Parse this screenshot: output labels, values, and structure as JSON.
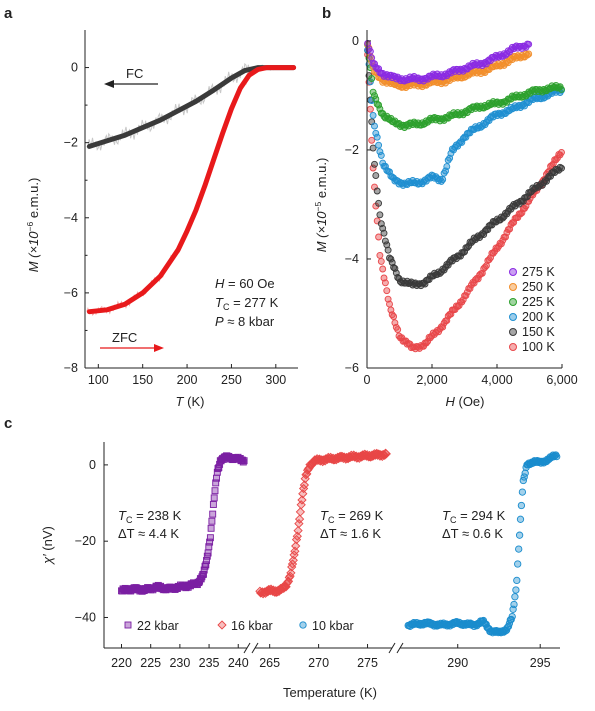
{
  "panels": {
    "a": {
      "letter": "a"
    },
    "b": {
      "letter": "b"
    },
    "c": {
      "letter": "c"
    }
  },
  "colors": {
    "fc": "#3a3a3a",
    "zfc": "#e8191b",
    "fc_noise": "#c8c8c8",
    "zfc_noise": "#f4a7a7",
    "t275": "#8a2be2",
    "t250": "#f28e2b",
    "t225": "#2ca02c",
    "t200": "#1f8fd1",
    "t150": "#3a3a3a",
    "t100": "#e8474a",
    "p22": "#7b1fa2",
    "p16": "#e84747",
    "p10": "#1a8ccd"
  },
  "chart_data": [
    {
      "id": "a",
      "type": "line",
      "ylabel_main": "M (×10",
      "ylabel_exp": "−6",
      "ylabel_unit": " e.m.u.)",
      "xlabel_main": "T",
      "xlabel_unit": " (K)",
      "xlim": [
        85,
        325
      ],
      "ylim": [
        -8,
        1
      ],
      "xticks": [
        "100",
        "150",
        "200",
        "250",
        "300"
      ],
      "yticks": [
        "0",
        "−2",
        "−4",
        "−6",
        "−8"
      ],
      "xtick_values": [
        100,
        150,
        200,
        250,
        300
      ],
      "ytick_values": [
        0,
        -2,
        -4,
        -6,
        -8
      ],
      "series": [
        {
          "name": "FC",
          "x": [
            90,
            110,
            130,
            150,
            170,
            190,
            210,
            230,
            250,
            265,
            280,
            300,
            320
          ],
          "y": [
            -2.1,
            -1.95,
            -1.8,
            -1.6,
            -1.4,
            -1.15,
            -0.9,
            -0.6,
            -0.28,
            -0.08,
            0,
            0,
            0
          ]
        },
        {
          "name": "ZFC",
          "x": [
            90,
            110,
            130,
            150,
            170,
            190,
            200,
            210,
            220,
            230,
            240,
            250,
            260,
            270,
            280,
            290,
            300,
            320
          ],
          "y": [
            -6.5,
            -6.45,
            -6.3,
            -6.0,
            -5.55,
            -4.85,
            -4.35,
            -3.8,
            -3.15,
            -2.45,
            -1.75,
            -1.1,
            -0.55,
            -0.2,
            -0.05,
            0,
            0,
            0
          ]
        }
      ],
      "annotations": {
        "h_label": "H = 60 Oe",
        "tc_main": "T",
        "tc_sub": "C",
        "tc_value": " = 277 K",
        "p_label": "P ≈ 8 kbar",
        "fc_label": "FC",
        "zfc_label": "ZFC"
      }
    },
    {
      "id": "b",
      "type": "scatter",
      "ylabel_main": "M (×10",
      "ylabel_exp": "−5",
      "ylabel_unit": " e.m.u.)",
      "xlabel_main": "H",
      "xlabel_unit": " (Oe)",
      "xlim": [
        0,
        6000
      ],
      "ylim": [
        -6,
        0.2
      ],
      "xticks": [
        "0",
        "2,000",
        "4,000",
        "6,000"
      ],
      "yticks": [
        "0",
        "−2",
        "−4",
        "−6"
      ],
      "xtick_values": [
        0,
        2000,
        4000,
        6000
      ],
      "ytick_values": [
        0,
        -2,
        -4,
        -6
      ],
      "series": [
        {
          "name": "275 K",
          "x": [
            0,
            200,
            500,
            800,
            1200,
            1600,
            2000,
            2500,
            3000,
            3500,
            4000,
            4500,
            5000
          ],
          "y": [
            0,
            -0.45,
            -0.6,
            -0.68,
            -0.7,
            -0.7,
            -0.66,
            -0.6,
            -0.5,
            -0.42,
            -0.3,
            -0.15,
            -0.05
          ]
        },
        {
          "name": "250 K",
          "x": [
            0,
            200,
            500,
            800,
            1200,
            1600,
            2000,
            2500,
            3000,
            3500,
            4000,
            4500,
            5000
          ],
          "y": [
            0,
            -0.55,
            -0.72,
            -0.8,
            -0.82,
            -0.8,
            -0.77,
            -0.72,
            -0.63,
            -0.56,
            -0.46,
            -0.33,
            -0.22
          ]
        },
        {
          "name": "225 K",
          "x": [
            0,
            200,
            500,
            800,
            1200,
            1600,
            2000,
            2500,
            3000,
            3500,
            4000,
            4500,
            5000,
            5500,
            6000
          ],
          "y": [
            0,
            -1.0,
            -1.35,
            -1.5,
            -1.55,
            -1.52,
            -1.45,
            -1.4,
            -1.3,
            -1.2,
            -1.15,
            -1.05,
            -0.95,
            -0.88,
            -0.85
          ]
        },
        {
          "name": "200 K",
          "x": [
            0,
            200,
            500,
            800,
            1200,
            1600,
            2000,
            2300,
            2600,
            3000,
            3500,
            4000,
            4500,
            5000,
            5500,
            6000
          ],
          "y": [
            0,
            -1.5,
            -2.25,
            -2.55,
            -2.62,
            -2.6,
            -2.5,
            -2.55,
            -2.05,
            -1.75,
            -1.55,
            -1.35,
            -1.25,
            -1.1,
            -1.0,
            -0.9
          ]
        },
        {
          "name": "150 K",
          "x": [
            0,
            200,
            400,
            700,
            1000,
            1400,
            1800,
            2200,
            2800,
            3400,
            4000,
            4600,
            5200,
            5800,
            6000
          ],
          "y": [
            0,
            -2.1,
            -3.2,
            -4.0,
            -4.38,
            -4.48,
            -4.42,
            -4.25,
            -3.95,
            -3.6,
            -3.3,
            -3.0,
            -2.7,
            -2.4,
            -2.3
          ]
        },
        {
          "name": "100 K",
          "x": [
            0,
            200,
            400,
            700,
            1000,
            1400,
            1800,
            2200,
            2800,
            3400,
            4000,
            4600,
            5200,
            5800,
            6000
          ],
          "y": [
            0,
            -2.5,
            -3.9,
            -4.9,
            -5.4,
            -5.65,
            -5.55,
            -5.3,
            -4.85,
            -4.35,
            -3.8,
            -3.25,
            -2.75,
            -2.2,
            -2.0
          ]
        }
      ],
      "legend_position": "bottom-right"
    },
    {
      "id": "c",
      "type": "scatter",
      "ylabel_main": "χ′",
      "ylabel_unit": " (nV)",
      "xlabel": "Temperature (K)",
      "ylim": [
        -48,
        6
      ],
      "yticks": [
        "0",
        "−20",
        "−40"
      ],
      "ytick_values": [
        0,
        -20,
        -40
      ],
      "segments": [
        {
          "xlim": [
            217,
            241.5
          ],
          "xticks": [
            "220",
            "225",
            "230",
            "235",
            "240"
          ],
          "xtick_values": [
            220,
            225,
            230,
            235,
            240
          ]
        },
        {
          "xlim": [
            263.5,
            277.5
          ],
          "xticks": [
            "265",
            "270",
            "275"
          ],
          "xtick_values": [
            265,
            270,
            275
          ]
        },
        {
          "xlim": [
            286.5,
            296.2
          ],
          "xticks": [
            "290",
            "295"
          ],
          "xtick_values": [
            290,
            295
          ]
        }
      ],
      "series": [
        {
          "name": "22 kbar",
          "segment": 0,
          "x": [
            220,
            222,
            224,
            226,
            228,
            230,
            232,
            233,
            234,
            234.6,
            235.2,
            235.6,
            236,
            236.4,
            237,
            238,
            239,
            240,
            241
          ],
          "y": [
            -33,
            -32.5,
            -32.8,
            -32,
            -32.5,
            -32,
            -31.5,
            -31,
            -29,
            -25,
            -19,
            -13,
            -7,
            -2,
            1.5,
            2,
            1.8,
            1.5,
            1.2
          ]
        },
        {
          "name": "16 kbar",
          "segment": 1,
          "x": [
            264,
            265,
            266,
            266.6,
            267.1,
            267.5,
            267.9,
            268.3,
            268.7,
            269.1,
            269.6,
            270.2,
            271,
            272,
            273,
            274,
            275,
            276,
            277
          ],
          "y": [
            -33.5,
            -33,
            -33,
            -32,
            -29,
            -24,
            -17,
            -9,
            -3,
            0,
            1,
            1.3,
            1.5,
            1.8,
            2,
            2.2,
            2.4,
            2.6,
            2.8
          ]
        },
        {
          "name": "10 kbar",
          "segment": 2,
          "x": [
            287,
            288,
            289,
            290,
            291,
            291.5,
            292,
            292.5,
            293,
            293.3,
            293.55,
            293.75,
            293.95,
            294.2,
            294.6,
            295,
            295.5,
            296
          ],
          "y": [
            -42,
            -41.5,
            -42,
            -41.5,
            -42,
            -41,
            -43.5,
            -44,
            -43,
            -40,
            -32,
            -18,
            -5,
            0,
            1,
            0.5,
            1.5,
            2.5
          ]
        }
      ],
      "annotations": [
        {
          "tc_main": "T",
          "tc_sub": "C",
          "tc_value": " = 238 K",
          "dt": "ΔT ≈ 4.4 K"
        },
        {
          "tc_main": "T",
          "tc_sub": "C",
          "tc_value": " = 269 K",
          "dt": "ΔT ≈ 1.6 K"
        },
        {
          "tc_main": "T",
          "tc_sub": "C",
          "tc_value": " = 294 K",
          "dt": "ΔT ≈ 0.6 K"
        }
      ],
      "legend_position": "bottom"
    }
  ]
}
